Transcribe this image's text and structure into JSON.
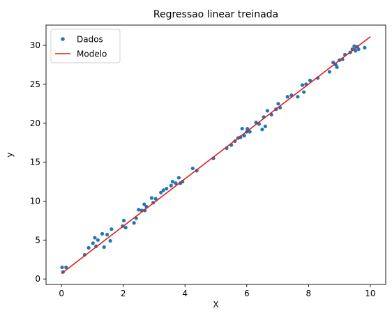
{
  "chart_data": {
    "type": "scatter",
    "title": "Regressao linear treinada",
    "xlabel": "X",
    "ylabel": "y",
    "xlim": [
      -0.5,
      10.5
    ],
    "ylim": [
      -0.7,
      32.6
    ],
    "x_ticks": [
      0,
      2,
      4,
      6,
      8,
      10
    ],
    "y_ticks": [
      0,
      5,
      10,
      15,
      20,
      25,
      30
    ],
    "grid": false,
    "legend_position": "top-left",
    "series": [
      {
        "name": "Dados",
        "type": "scatter",
        "color": "#1f77b4",
        "points": [
          [
            0.02,
            1.5
          ],
          [
            0.05,
            0.9
          ],
          [
            0.15,
            1.5
          ],
          [
            0.75,
            3.1
          ],
          [
            0.88,
            4.0
          ],
          [
            1.02,
            4.6
          ],
          [
            1.08,
            5.3
          ],
          [
            1.12,
            4.2
          ],
          [
            1.18,
            5.0
          ],
          [
            1.32,
            5.8
          ],
          [
            1.38,
            4.1
          ],
          [
            1.48,
            5.7
          ],
          [
            1.58,
            4.9
          ],
          [
            1.62,
            6.4
          ],
          [
            1.98,
            6.8
          ],
          [
            2.02,
            7.5
          ],
          [
            2.08,
            6.6
          ],
          [
            2.35,
            7.2
          ],
          [
            2.42,
            7.8
          ],
          [
            2.5,
            8.9
          ],
          [
            2.6,
            8.8
          ],
          [
            2.68,
            9.6
          ],
          [
            2.7,
            8.8
          ],
          [
            2.75,
            9.3
          ],
          [
            2.92,
            10.4
          ],
          [
            2.97,
            9.8
          ],
          [
            3.05,
            10.3
          ],
          [
            3.22,
            11.1
          ],
          [
            3.3,
            11.4
          ],
          [
            3.4,
            11.6
          ],
          [
            3.55,
            12.0
          ],
          [
            3.6,
            12.5
          ],
          [
            3.7,
            12.3
          ],
          [
            3.8,
            13.0
          ],
          [
            3.85,
            12.3
          ],
          [
            3.92,
            12.5
          ],
          [
            4.25,
            14.2
          ],
          [
            4.38,
            13.9
          ],
          [
            4.92,
            15.5
          ],
          [
            5.35,
            16.8
          ],
          [
            5.5,
            17.2
          ],
          [
            5.62,
            17.7
          ],
          [
            5.72,
            18.1
          ],
          [
            5.8,
            18.2
          ],
          [
            5.85,
            19.3
          ],
          [
            5.92,
            18.4
          ],
          [
            6.0,
            18.9
          ],
          [
            6.02,
            19.3
          ],
          [
            6.1,
            18.9
          ],
          [
            6.3,
            20.1
          ],
          [
            6.4,
            19.9
          ],
          [
            6.5,
            19.2
          ],
          [
            6.55,
            20.8
          ],
          [
            6.6,
            19.6
          ],
          [
            6.67,
            21.6
          ],
          [
            6.8,
            21.1
          ],
          [
            6.95,
            21.8
          ],
          [
            7.02,
            22.5
          ],
          [
            7.08,
            22.0
          ],
          [
            7.32,
            23.4
          ],
          [
            7.45,
            23.6
          ],
          [
            7.65,
            23.4
          ],
          [
            7.8,
            24.9
          ],
          [
            7.85,
            24.0
          ],
          [
            7.92,
            25.0
          ],
          [
            8.05,
            25.5
          ],
          [
            8.3,
            25.8
          ],
          [
            8.68,
            26.6
          ],
          [
            8.8,
            27.8
          ],
          [
            8.88,
            27.5
          ],
          [
            8.92,
            27.2
          ],
          [
            9.0,
            28.1
          ],
          [
            9.1,
            28.2
          ],
          [
            9.18,
            28.8
          ],
          [
            9.35,
            29.1
          ],
          [
            9.42,
            29.5
          ],
          [
            9.48,
            29.9
          ],
          [
            9.52,
            29.3
          ],
          [
            9.58,
            29.8
          ],
          [
            9.62,
            29.5
          ],
          [
            9.82,
            29.7
          ]
        ]
      },
      {
        "name": "Modelo",
        "type": "line",
        "color": "#e41a1c",
        "points": [
          [
            0.0,
            0.7
          ],
          [
            10.0,
            31.1
          ]
        ]
      }
    ]
  }
}
